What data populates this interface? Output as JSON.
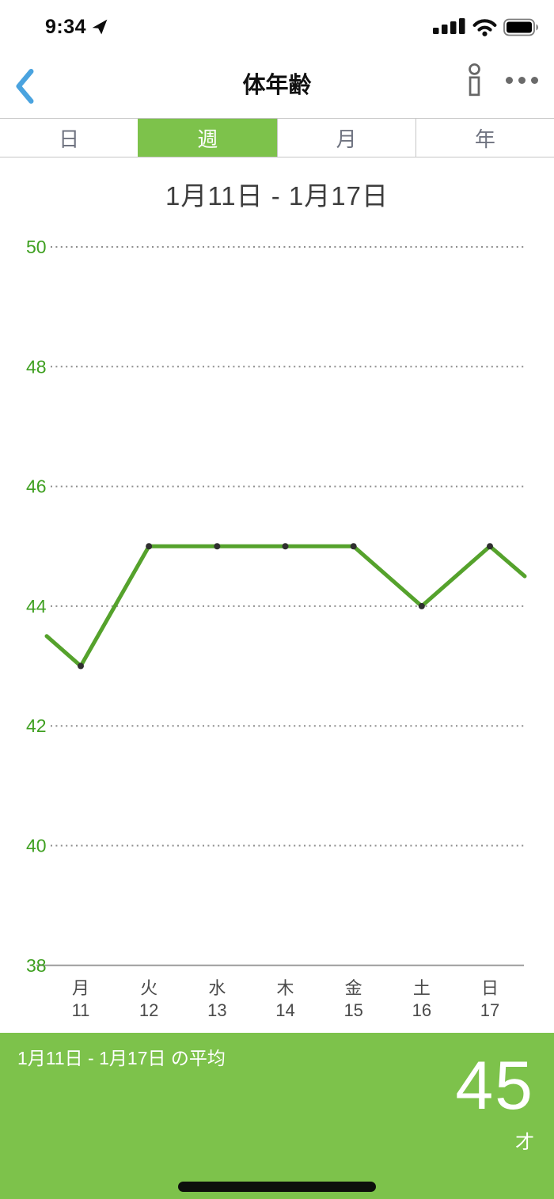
{
  "status_bar": {
    "time": "9:34",
    "icons": [
      "location-arrow",
      "cellular-signal",
      "wifi",
      "battery"
    ]
  },
  "header": {
    "title": "体年齢"
  },
  "tabs": {
    "items": [
      {
        "id": "day",
        "label": "日",
        "selected": false
      },
      {
        "id": "week",
        "label": "週",
        "selected": true
      },
      {
        "id": "month",
        "label": "月",
        "selected": false
      },
      {
        "id": "year",
        "label": "年",
        "selected": false
      }
    ]
  },
  "chart_data": {
    "type": "line",
    "title": "1月11日 - 1月17日",
    "x_weekdays": [
      "月",
      "火",
      "水",
      "木",
      "金",
      "土",
      "日"
    ],
    "x_dates": [
      "11",
      "12",
      "13",
      "14",
      "15",
      "16",
      "17"
    ],
    "values": [
      43,
      45,
      45,
      45,
      45,
      44,
      45
    ],
    "edge_values": {
      "left": 43.5,
      "right": 44.5
    },
    "y_ticks": [
      50,
      48,
      46,
      44,
      42,
      40,
      38
    ],
    "baseline_tick": 38,
    "ylim": [
      38,
      50.7
    ],
    "grid": "dotted-horizontal",
    "legend": "none",
    "ylabel": "",
    "xlabel": ""
  },
  "summary": {
    "label": "1月11日 - 1月17日 の平均",
    "value": "45",
    "unit": "才"
  },
  "colors": {
    "accent_green": "#7dc24b",
    "line_green": "#55a22c",
    "axis_label_green": "#3fa021",
    "x_label_gray": "#4b4b4b",
    "grid_gray": "#8d8d8d",
    "back_blue": "#4aa3df",
    "icon_gray": "#666666",
    "point_dark": "#2f2f2f"
  }
}
